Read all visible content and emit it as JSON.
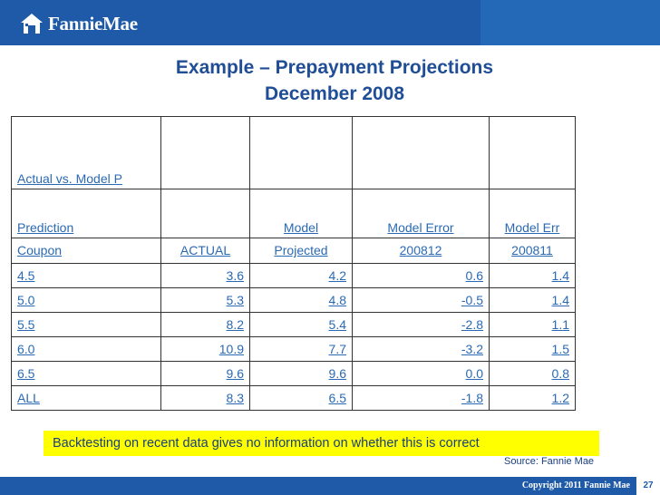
{
  "header": {
    "logo_text": "FannieMae",
    "colors": {
      "banner": "#1e5aa8",
      "accent": "#2469b8"
    },
    "logo_icon": "house-logo-icon"
  },
  "title": {
    "line1": "Example – Prepayment Projections",
    "line2": "December 2008"
  },
  "table": {
    "header_rows": [
      [
        "Actual vs. Model P",
        "",
        "",
        "",
        ""
      ],
      [
        "Prediction",
        "",
        " Model",
        " Model Error",
        "Model Err"
      ],
      [
        "Coupon",
        "ACTUAL",
        "Projected",
        "200812",
        "200811"
      ]
    ],
    "rows": [
      [
        "4.5",
        "3.6",
        "4.2",
        "0.6",
        "1.4"
      ],
      [
        "5.0",
        "5.3",
        "4.8",
        "-0.5",
        "1.4"
      ],
      [
        "5.5",
        "8.2",
        "5.4",
        "-2.8",
        "1.1"
      ],
      [
        "6.0",
        "10.9",
        "7.7",
        "-3.2",
        "1.5"
      ],
      [
        "6.5",
        "9.6",
        "9.6",
        "0.0",
        "0.8"
      ],
      [
        "ALL",
        "8.3",
        "6.5",
        "-1.8",
        "1.2"
      ]
    ]
  },
  "note": "Backtesting on recent data gives no information on whether this is correct",
  "source": "Source: Fannie Mae",
  "footer": {
    "copyright": "Copyright 2011 Fannie Mae",
    "page_number": "27"
  }
}
